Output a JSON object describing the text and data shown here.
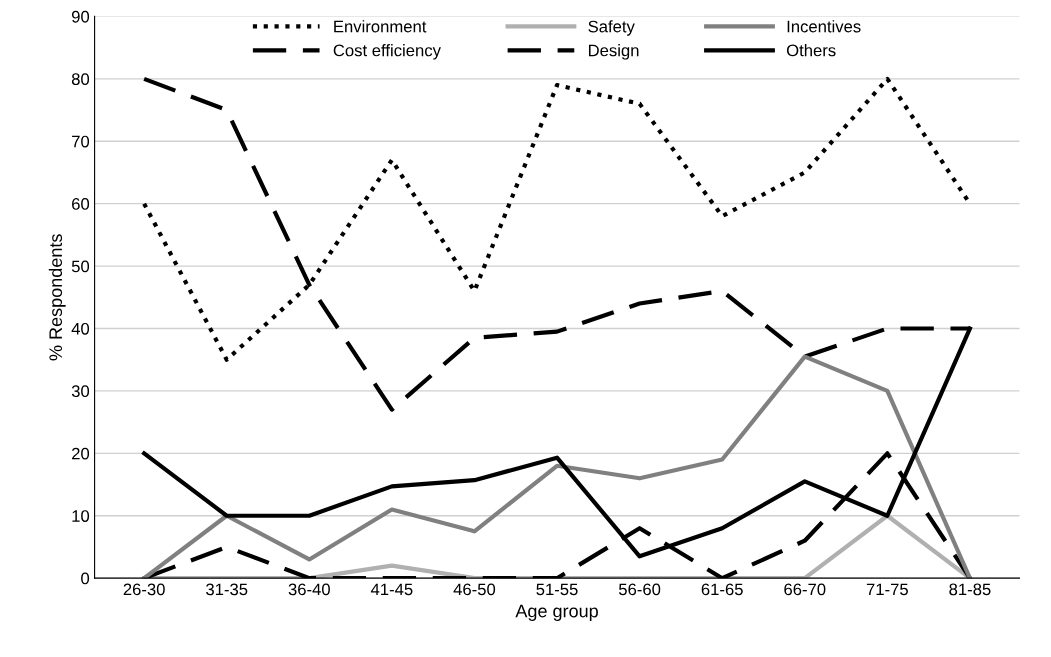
{
  "chart_data": {
    "type": "line",
    "xlabel": "Age group",
    "ylabel": "% Respondents",
    "categories": [
      "26-30",
      "31-35",
      "36-40",
      "41-45",
      "46-50",
      "51-55",
      "56-60",
      "61-65",
      "66-70",
      "71-75",
      "81-85"
    ],
    "ylim": [
      0,
      90
    ],
    "yticks": [
      0,
      10,
      20,
      30,
      40,
      50,
      60,
      70,
      80,
      90
    ],
    "grid": "y",
    "legend": "top",
    "marker": "none",
    "series": [
      {
        "name": "Environment",
        "color": "#000000",
        "line_style": "dotted",
        "values": [
          60,
          35,
          47,
          67,
          46,
          79,
          76,
          58,
          65,
          80,
          60
        ]
      },
      {
        "name": "Cost efficiency",
        "color": "#000000",
        "line_style": "dashed",
        "values": [
          80,
          75,
          47,
          27,
          38.5,
          39.5,
          44,
          46,
          35.5,
          40,
          40
        ]
      },
      {
        "name": "Safety",
        "color": "#b0b0b0",
        "line_style": "solid",
        "values": [
          0,
          0,
          0,
          2,
          0,
          0,
          0,
          0,
          0,
          10,
          0
        ]
      },
      {
        "name": "Design",
        "color": "#000000",
        "line_style": "dashed",
        "values": [
          0,
          5,
          0,
          0,
          0,
          0,
          8,
          0,
          6,
          20,
          0
        ]
      },
      {
        "name": "Incentives",
        "color": "#808080",
        "line_style": "solid",
        "values": [
          0,
          10,
          3,
          11,
          7.5,
          18,
          16,
          19,
          35.5,
          30,
          0
        ]
      },
      {
        "name": "Others",
        "color": "#000000",
        "line_style": "solid",
        "values": [
          20,
          10,
          10,
          14.7,
          15.7,
          19.3,
          3.5,
          8,
          15.5,
          10,
          40
        ]
      }
    ]
  }
}
